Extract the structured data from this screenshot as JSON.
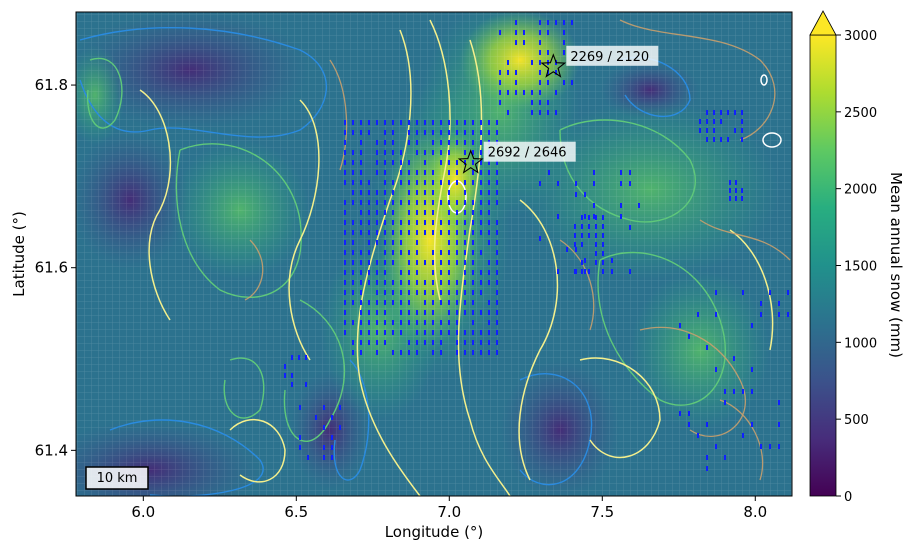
{
  "map": {
    "xlabel": "Longitude (°)",
    "ylabel": "Latitude (°)",
    "x_ticks": [
      "6.0",
      "6.5",
      "7.0",
      "7.5",
      "8.0"
    ],
    "y_ticks": [
      "61.4",
      "61.6",
      "61.8"
    ],
    "x_range": [
      5.78,
      8.12
    ],
    "y_range": [
      61.35,
      61.88
    ],
    "scale_bar_label": "10 km",
    "markers": [
      {
        "label": "2269 / 2120",
        "lon": 7.34,
        "lat": 61.82
      },
      {
        "label": "2692 / 2646",
        "lon": 7.07,
        "lat": 61.715
      }
    ]
  },
  "colorbar": {
    "label": "Mean annual snow (mm)",
    "ticks": [
      "0",
      "500",
      "1000",
      "1500",
      "2000",
      "2500",
      "3000"
    ],
    "range": [
      0,
      3000
    ],
    "extend": "max",
    "colormap": "viridis"
  },
  "colors": {
    "contour_white": "#ffffff",
    "contour_yellow": "#f5f08c",
    "contour_green": "#5fc87a",
    "contour_blue": "#2a8be0",
    "contour_tan": "#c8a06e",
    "stipple": "#1020ff"
  }
}
